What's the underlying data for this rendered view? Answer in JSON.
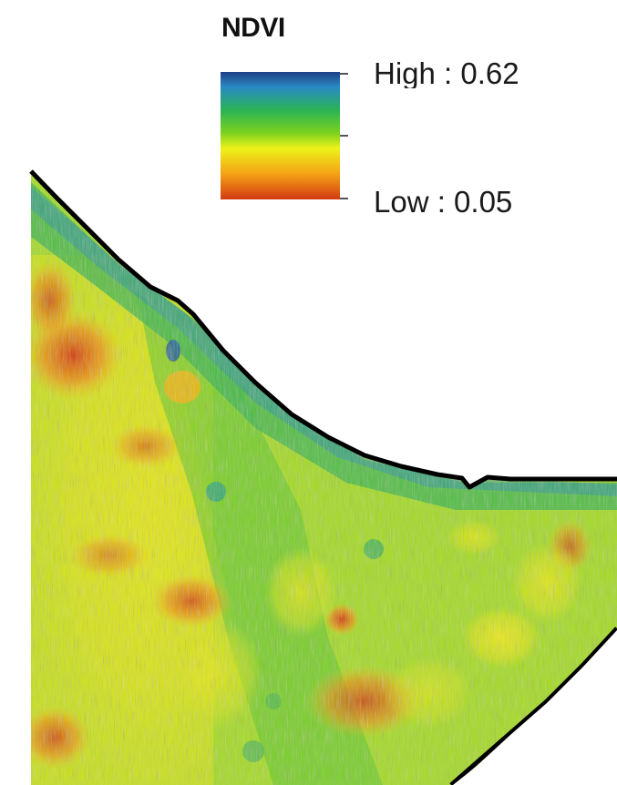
{
  "legend": {
    "title": "NDVI",
    "high_label": "High : 0.62",
    "low_label": "Low : 0.05",
    "ramp_colors": [
      "#1e3f86",
      "#2a8bc4",
      "#2bb356",
      "#7cd21e",
      "#eef21a",
      "#f4a216",
      "#d23a12"
    ]
  },
  "map": {
    "boundary_color": "#000000",
    "background_color": "#ffffff",
    "field_base_color": "#a8dc2a"
  }
}
